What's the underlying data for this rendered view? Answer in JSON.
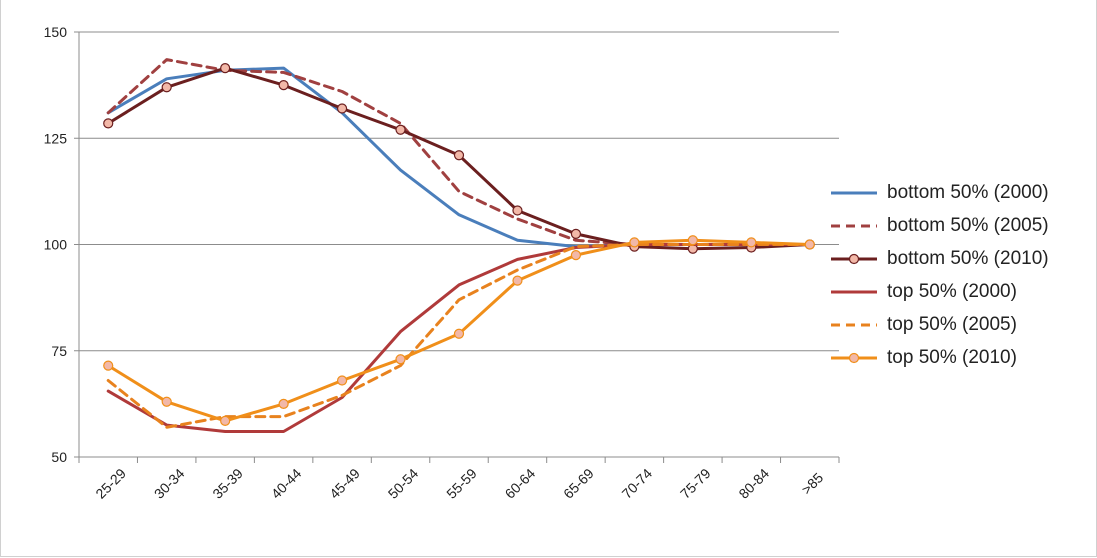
{
  "chart_data": {
    "type": "line",
    "title": "",
    "xlabel": "",
    "ylabel": "",
    "categories": [
      "25-29",
      "30-34",
      "35-39",
      "40-44",
      "45-49",
      "50-54",
      "55-59",
      "60-64",
      "65-69",
      "70-74",
      "75-79",
      "80-84",
      ">85"
    ],
    "ylim": [
      50,
      150
    ],
    "yticks": [
      50,
      75,
      100,
      125,
      150
    ],
    "grid": "horizontal",
    "legend_position": "right",
    "series": [
      {
        "name": "bottom 50% (2000)",
        "color": "#4a7ebb",
        "dash": false,
        "markers": false,
        "values": [
          131,
          139,
          141,
          141.5,
          131,
          117.5,
          107,
          101,
          99.5,
          100,
          100,
          100,
          100
        ]
      },
      {
        "name": "bottom 50% (2005)",
        "color": "#a04040",
        "dash": true,
        "markers": false,
        "values": [
          131,
          143.5,
          141,
          140.5,
          136,
          128.5,
          112.5,
          106,
          101,
          100,
          100,
          100,
          100
        ]
      },
      {
        "name": "bottom 50% (2010)",
        "color": "#6b1f1f",
        "dash": false,
        "markers": true,
        "values": [
          128.5,
          137,
          141.5,
          137.5,
          132,
          127,
          121,
          108,
          102.5,
          99.5,
          99,
          99.3,
          100
        ]
      },
      {
        "name": "top 50% (2000)",
        "color": "#b03a3a",
        "dash": false,
        "markers": false,
        "values": [
          65.5,
          57.5,
          56,
          56,
          64,
          79.5,
          90.5,
          96.5,
          99.3,
          100,
          100,
          100,
          100
        ]
      },
      {
        "name": "top 50% (2005)",
        "color": "#e8821e",
        "dash": true,
        "markers": false,
        "values": [
          68,
          57,
          59.5,
          59.5,
          64.5,
          71.5,
          87,
          94,
          99.5,
          100,
          100,
          100,
          100
        ]
      },
      {
        "name": "top 50% (2010)",
        "color": "#f08f1a",
        "dash": false,
        "markers": true,
        "values": [
          71.5,
          63,
          58.5,
          62.5,
          68,
          73,
          79,
          91.5,
          97.5,
          100.5,
          101,
          100.5,
          100
        ]
      }
    ]
  }
}
